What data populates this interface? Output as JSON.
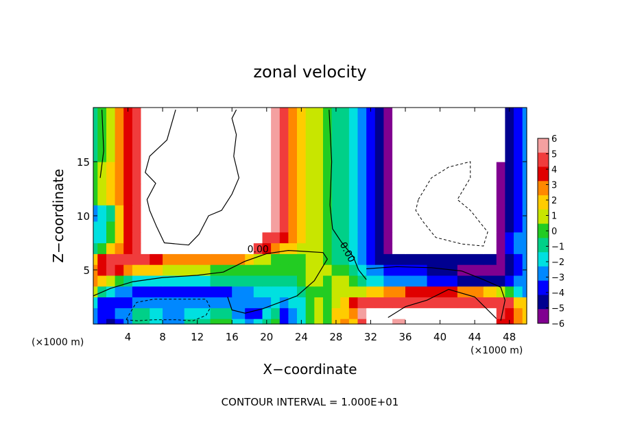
{
  "chart_data": {
    "type": "heatmap",
    "title": "zonal velocity",
    "xlabel": "X−coordinate",
    "ylabel": "Z−coordinate",
    "x_unit_left": "(×1000 m)",
    "x_unit_right": "(×1000 m)",
    "footer": "CONTOUR INTERVAL = 1.000E+01",
    "xlim": [
      0,
      50
    ],
    "ylim": [
      0,
      20
    ],
    "x_ticks": [
      4,
      8,
      12,
      16,
      20,
      24,
      28,
      32,
      36,
      40,
      44,
      48
    ],
    "y_ticks": [
      5,
      10,
      15
    ],
    "contour_labels": [
      {
        "text": "0.00",
        "x": 19,
        "y": 6.6
      },
      {
        "text": "0.00",
        "x": 29,
        "y": 6.5
      }
    ],
    "colorbar": {
      "min": -6,
      "max": 6,
      "labels": [
        "6",
        "5",
        "4",
        "3",
        "2",
        "1",
        "0",
        "−1",
        "−2",
        "−3",
        "−4",
        "−5",
        "−6"
      ]
    },
    "colors": {
      "6": "#f4a0a0",
      "5": "#f03c3c",
      "4": "#e00000",
      "3": "#ff8800",
      "2": "#ffcc00",
      "1": "#c8e600",
      "0": "#22cc22",
      "-1": "#00d088",
      "-2": "#00e0e0",
      "-3": "#0088ff",
      "-4": "#0000ff",
      "-5": "#000090",
      "-6": "#800090",
      "outside": "#ffffff"
    },
    "field_columns_x": [
      0,
      1,
      2,
      3,
      4,
      5,
      6,
      7,
      9,
      12,
      15,
      17,
      18,
      19,
      20,
      21,
      22,
      23,
      24,
      25,
      26,
      27,
      28,
      29,
      30,
      31,
      32,
      33,
      34,
      35,
      37,
      40,
      44,
      46,
      47,
      48,
      49,
      50
    ],
    "field_rows_z": [
      0,
      1,
      2,
      3,
      4,
      5,
      6,
      7,
      8,
      9,
      10,
      12,
      14,
      16,
      18,
      20
    ],
    "field_values": [
      [
        -3,
        -4,
        -5,
        -4,
        -3,
        -1,
        -1,
        -2,
        -3,
        -1,
        0,
        -2,
        -3,
        -2,
        -1,
        0,
        -4,
        -3,
        -2,
        0,
        1,
        0,
        2,
        3,
        2,
        5,
        7,
        8,
        7,
        6,
        7,
        8,
        8,
        8,
        4,
        4,
        3,
        2
      ],
      [
        -3,
        -4,
        -4,
        -3,
        -3,
        -1,
        -1,
        -2,
        -3,
        -2,
        -1,
        -3,
        -4,
        -4,
        -2,
        -1,
        -4,
        -3,
        -2,
        0,
        1,
        0,
        2,
        2,
        3,
        6,
        8,
        8,
        8,
        7,
        7,
        8,
        8,
        7,
        5,
        4,
        3,
        2
      ],
      [
        -2,
        -4,
        -4,
        -4,
        -4,
        -3,
        -3,
        -3,
        -3,
        -3,
        -3,
        -3,
        -3,
        -3,
        -3,
        -2,
        -3,
        -2,
        -2,
        0,
        1,
        0,
        1,
        2,
        4,
        5,
        5,
        5,
        5,
        5,
        5,
        5,
        5,
        5,
        5,
        5,
        2,
        2
      ],
      [
        1,
        -1,
        -2,
        -3,
        -3,
        -4,
        -4,
        -4,
        -4,
        -4,
        -4,
        -3,
        -3,
        -2,
        -2,
        -2,
        -2,
        -2,
        -1,
        0,
        0,
        0,
        1,
        1,
        1,
        1,
        2,
        2,
        3,
        3,
        4,
        4,
        3,
        2,
        1,
        0,
        -2,
        -3
      ],
      [
        3,
        2,
        1,
        0,
        -1,
        -2,
        -2,
        -2,
        -2,
        -2,
        -1,
        -1,
        -1,
        -1,
        -1,
        -1,
        -1,
        -1,
        0,
        1,
        1,
        0,
        1,
        1,
        0,
        -1,
        -2,
        -2,
        -3,
        -3,
        -3,
        -4,
        -5,
        -5,
        -5,
        -4,
        -3,
        -3
      ],
      [
        3,
        4,
        5,
        4,
        3,
        2,
        2,
        2,
        1,
        1,
        0,
        0,
        0,
        0,
        0,
        0,
        0,
        0,
        0,
        1,
        1,
        1,
        0,
        0,
        -1,
        -2,
        -3,
        -3,
        -4,
        -4,
        -4,
        -5,
        -6,
        -6,
        -6,
        -5,
        -4,
        -3
      ],
      [
        2,
        4,
        5,
        5,
        5,
        5,
        5,
        4,
        3,
        3,
        3,
        3,
        2,
        1,
        1,
        0,
        0,
        0,
        0,
        1,
        1,
        0,
        -1,
        -1,
        -2,
        -3,
        -4,
        -5,
        -5,
        -5,
        -5,
        -5,
        -5,
        -5,
        -6,
        -5,
        -4,
        -3
      ],
      [
        -1,
        0,
        2,
        3,
        4,
        5,
        7,
        7,
        7,
        7,
        7,
        7,
        7,
        5,
        4,
        3,
        2,
        2,
        1,
        1,
        1,
        0,
        -1,
        -1,
        -2,
        -3,
        -4,
        -5,
        -6,
        8,
        8,
        8,
        8,
        8,
        -6,
        -4,
        -3,
        -3
      ],
      [
        -2,
        -2,
        0,
        2,
        4,
        5,
        8,
        8,
        8,
        8,
        8,
        8,
        8,
        8,
        5,
        5,
        4,
        3,
        2,
        1,
        1,
        0,
        -1,
        -1,
        -2,
        -3,
        -4,
        -5,
        -6,
        8,
        8,
        8,
        8,
        8,
        -6,
        -4,
        -3,
        -3
      ],
      [
        -2,
        -2,
        0,
        2,
        4,
        5,
        8,
        8,
        8,
        8,
        8,
        8,
        8,
        8,
        8,
        6,
        5,
        3,
        2,
        1,
        1,
        0,
        -1,
        -1,
        -2,
        -3,
        -4,
        -5,
        -6,
        8,
        8,
        8,
        8,
        8,
        -6,
        -5,
        -4,
        -3
      ],
      [
        -3,
        -2,
        -1,
        2,
        4,
        5,
        8,
        8,
        8,
        8,
        8,
        8,
        8,
        8,
        8,
        6,
        5,
        3,
        2,
        1,
        1,
        0,
        -1,
        -1,
        -2,
        -3,
        -4,
        -5,
        -6,
        8,
        8,
        8,
        8,
        8,
        -6,
        -5,
        -4,
        -3
      ],
      [
        0,
        1,
        2,
        3,
        4,
        5,
        8,
        8,
        8,
        8,
        8,
        8,
        8,
        8,
        8,
        6,
        5,
        3,
        2,
        1,
        1,
        0,
        -1,
        -1,
        -2,
        -3,
        -4,
        -5,
        -6,
        8,
        8,
        8,
        8,
        8,
        -6,
        -5,
        -4,
        -3
      ],
      [
        0,
        1,
        2,
        3,
        4,
        5,
        8,
        8,
        8,
        8,
        8,
        8,
        8,
        8,
        8,
        6,
        5,
        3,
        2,
        1,
        1,
        0,
        -1,
        -1,
        -2,
        -3,
        -4,
        -5,
        -6,
        8,
        8,
        8,
        8,
        8,
        -6,
        -5,
        -4,
        -3
      ],
      [
        -1,
        0,
        1,
        3,
        4,
        5,
        8,
        8,
        8,
        8,
        8,
        8,
        8,
        8,
        8,
        6,
        5,
        3,
        2,
        1,
        1,
        0,
        -1,
        -1,
        -2,
        -3,
        -4,
        -5,
        -6,
        8,
        8,
        8,
        8,
        8,
        8,
        -5,
        -4,
        -3
      ],
      [
        -1,
        0,
        1,
        3,
        4,
        5,
        8,
        8,
        8,
        8,
        8,
        8,
        8,
        8,
        8,
        6,
        5,
        3,
        2,
        1,
        1,
        0,
        -1,
        -1,
        -2,
        -3,
        -4,
        -5,
        -6,
        8,
        8,
        8,
        8,
        8,
        8,
        -5,
        -4,
        -3
      ],
      [
        -1,
        0,
        1,
        3,
        4,
        5,
        8,
        8,
        8,
        8,
        8,
        8,
        8,
        8,
        8,
        6,
        5,
        3,
        2,
        1,
        1,
        0,
        -1,
        -1,
        -2,
        -3,
        -4,
        -5,
        -6,
        8,
        8,
        8,
        8,
        8,
        8,
        -5,
        -4,
        -3
      ]
    ],
    "contours_solid": [
      [
        [
          0.8,
          13.5
        ],
        [
          1.2,
          16
        ],
        [
          1.0,
          19.8
        ]
      ],
      [
        [
          9.5,
          19.8
        ],
        [
          8.5,
          17
        ],
        [
          6.5,
          15.5
        ],
        [
          6.0,
          14
        ],
        [
          7.2,
          13
        ],
        [
          6.2,
          11.5
        ],
        [
          6.5,
          10.5
        ],
        [
          7.3,
          9
        ],
        [
          8.2,
          7.5
        ],
        [
          11,
          7.3
        ],
        [
          12.2,
          8.3
        ],
        [
          13.3,
          10
        ],
        [
          14.8,
          10.5
        ],
        [
          16,
          12
        ],
        [
          16.8,
          13.5
        ],
        [
          16.2,
          15.5
        ],
        [
          16.5,
          17.5
        ],
        [
          16,
          19
        ],
        [
          16.5,
          19.8
        ]
      ],
      [
        [
          0,
          2.6
        ],
        [
          2,
          3.3
        ],
        [
          4.5,
          3.9
        ],
        [
          8,
          4.3
        ],
        [
          12,
          4.5
        ],
        [
          15,
          4.8
        ],
        [
          17.5,
          5.8
        ],
        [
          20,
          6.5
        ],
        [
          22.5,
          6.8
        ],
        [
          24.5,
          6.7
        ],
        [
          26.5,
          6.6
        ],
        [
          27,
          6
        ],
        [
          25.5,
          4
        ],
        [
          23.5,
          2.6
        ],
        [
          21.5,
          2
        ],
        [
          19.5,
          1.4
        ],
        [
          17.5,
          1
        ],
        [
          16,
          1.3
        ],
        [
          15.5,
          2.5
        ]
      ],
      [
        [
          27.2,
          19.8
        ],
        [
          27.5,
          15
        ],
        [
          27.3,
          11
        ],
        [
          27.6,
          8.8
        ],
        [
          28.6,
          7.6
        ],
        [
          30,
          6.2
        ],
        [
          30.6,
          5
        ],
        [
          31.5,
          4.1
        ]
      ],
      [
        [
          31.5,
          5.1
        ],
        [
          35,
          5.3
        ],
        [
          39,
          5.2
        ],
        [
          42.5,
          4.9
        ],
        [
          45,
          4.1
        ],
        [
          47,
          3.4
        ],
        [
          47.5,
          2.2
        ],
        [
          47,
          0.3
        ]
      ],
      [
        [
          34,
          0.6
        ],
        [
          36,
          1.6
        ],
        [
          38.5,
          2.2
        ],
        [
          41,
          3.2
        ],
        [
          44,
          2.5
        ],
        [
          46.5,
          0.5
        ]
      ]
    ],
    "contours_dashed": [
      [
        [
          3.8,
          0.4
        ],
        [
          4.6,
          1.5
        ],
        [
          5.0,
          2.0
        ],
        [
          7,
          2.3
        ],
        [
          9,
          2.3
        ],
        [
          11,
          2.3
        ],
        [
          13,
          2.3
        ],
        [
          13.5,
          1.5
        ],
        [
          13,
          0.8
        ],
        [
          11.5,
          0.3
        ],
        [
          9.5,
          0.4
        ],
        [
          7,
          0.4
        ],
        [
          5,
          0.3
        ],
        [
          3.8,
          0.4
        ]
      ],
      [
        [
          37.5,
          11.5
        ],
        [
          39,
          13.5
        ],
        [
          41,
          14.5
        ],
        [
          43.5,
          15
        ],
        [
          43.5,
          13.5
        ],
        [
          42,
          11.5
        ],
        [
          43.5,
          10.5
        ],
        [
          45.5,
          8.5
        ],
        [
          45,
          7.2
        ],
        [
          42.5,
          7.4
        ],
        [
          39.5,
          8
        ],
        [
          38,
          9.5
        ],
        [
          37.2,
          10.5
        ],
        [
          37.5,
          11.5
        ]
      ]
    ]
  }
}
